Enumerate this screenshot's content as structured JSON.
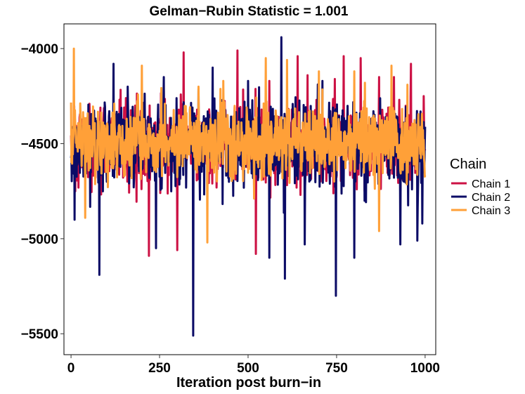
{
  "chart_data": {
    "type": "line",
    "title": "Gelman−Rubin Statistic = 1.001",
    "xlabel": "Iteration post burn−in",
    "ylabel": "",
    "xlim": [
      -20,
      1030
    ],
    "ylim": [
      -5610,
      -3870
    ],
    "x_ticks": [
      0,
      250,
      500,
      750,
      1000
    ],
    "x_tick_labels": [
      "0",
      "250",
      "500",
      "750",
      "1000"
    ],
    "y_ticks": [
      -4000,
      -4500,
      -5000,
      -5500
    ],
    "y_tick_labels": [
      "−4000",
      "−4500",
      "−5000",
      "−5500"
    ],
    "grid": false,
    "legend": {
      "title": "Chain",
      "position": "right",
      "entries": [
        "Chain 1",
        "Chain 2",
        "Chain 3"
      ]
    },
    "n_iterations": 1000,
    "series": [
      {
        "name": "Chain 1",
        "color": "#CC1144",
        "mean": -4500,
        "spread": 170,
        "seed": 17,
        "anchors": [
          [
            12,
            -4750
          ],
          [
            155,
            -4260
          ],
          [
            220,
            -5090
          ],
          [
            262,
            -4220
          ],
          [
            300,
            -5060
          ],
          [
            318,
            -4020
          ],
          [
            470,
            -4010
          ],
          [
            522,
            -5080
          ],
          [
            560,
            -4170
          ],
          [
            640,
            -4040
          ],
          [
            668,
            -4140
          ],
          [
            745,
            -4160
          ],
          [
            770,
            -4040
          ],
          [
            818,
            -4050
          ],
          [
            870,
            -4150
          ],
          [
            912,
            -4150
          ],
          [
            960,
            -4080
          ],
          [
            996,
            -4250
          ]
        ]
      },
      {
        "name": "Chain 2",
        "color": "#0B0B66",
        "mean": -4510,
        "spread": 190,
        "seed": 53,
        "anchors": [
          [
            10,
            -4900
          ],
          [
            80,
            -5190
          ],
          [
            120,
            -4080
          ],
          [
            160,
            -4200
          ],
          [
            240,
            -5050
          ],
          [
            262,
            -4150
          ],
          [
            345,
            -5510
          ],
          [
            400,
            -4100
          ],
          [
            500,
            -4170
          ],
          [
            560,
            -5100
          ],
          [
            594,
            -3940
          ],
          [
            604,
            -5210
          ],
          [
            660,
            -5030
          ],
          [
            710,
            -4170
          ],
          [
            748,
            -5300
          ],
          [
            800,
            -5100
          ],
          [
            930,
            -5030
          ],
          [
            978,
            -5010
          ],
          [
            992,
            -4920
          ]
        ]
      },
      {
        "name": "Chain 3",
        "color": "#FFA038",
        "mean": -4490,
        "spread": 160,
        "seed": 91,
        "anchors": [
          [
            8,
            -4000
          ],
          [
            40,
            -4890
          ],
          [
            200,
            -4090
          ],
          [
            360,
            -4200
          ],
          [
            385,
            -5020
          ],
          [
            430,
            -4170
          ],
          [
            550,
            -4050
          ],
          [
            610,
            -4060
          ],
          [
            700,
            -4120
          ],
          [
            800,
            -4120
          ],
          [
            830,
            -4180
          ],
          [
            870,
            -4960
          ],
          [
            905,
            -4090
          ],
          [
            950,
            -4190
          ]
        ]
      }
    ]
  }
}
